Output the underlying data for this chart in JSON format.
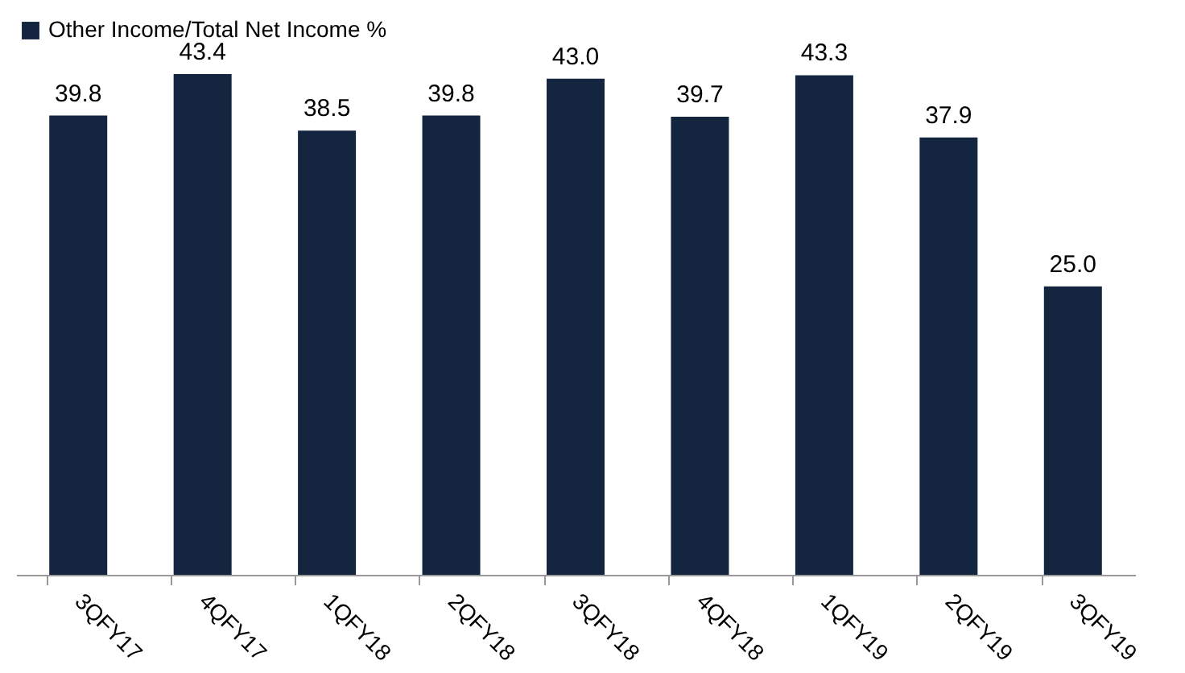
{
  "chart_data": {
    "type": "bar",
    "categories": [
      "3QFY17",
      "4QFY17",
      "1QFY18",
      "2QFY18",
      "3QFY18",
      "4QFY18",
      "1QFY19",
      "2QFY19",
      "3QFY19"
    ],
    "series": [
      {
        "name": "Other Income/Total Net Income %",
        "color": "#13253f",
        "values": [
          39.8,
          43.4,
          38.5,
          39.8,
          43.0,
          39.7,
          43.3,
          37.9,
          25.0
        ],
        "value_labels": [
          "39.8",
          "43.4",
          "38.5",
          "39.8",
          "43.0",
          "39.7",
          "43.3",
          "37.9",
          "25.0"
        ]
      }
    ],
    "legend": "top",
    "grid": false,
    "tick_labels": "x"
  }
}
